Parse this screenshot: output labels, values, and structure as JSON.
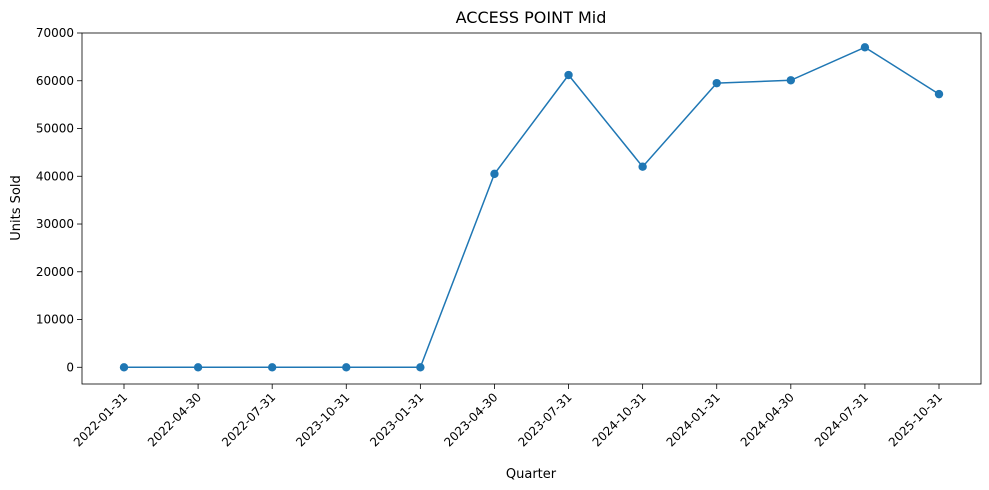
{
  "chart_data": {
    "type": "line",
    "title": "ACCESS POINT Mid",
    "xlabel": "Quarter",
    "ylabel": "Units Sold",
    "categories": [
      "2022-01-31",
      "2022-04-30",
      "2022-07-31",
      "2023-10-31",
      "2023-01-31",
      "2023-04-30",
      "2023-07-31",
      "2024-10-31",
      "2024-01-31",
      "2024-04-30",
      "2024-07-31",
      "2025-10-31"
    ],
    "series": [
      {
        "values": [
          0,
          0,
          0,
          0,
          0,
          40500,
          61200,
          42000,
          59500,
          60100,
          67000,
          57200
        ]
      }
    ],
    "ylim": [
      -3500,
      70000
    ],
    "yticks": [
      0,
      10000,
      20000,
      30000,
      40000,
      50000,
      60000,
      70000
    ],
    "grid": false,
    "legend": "none",
    "color": "#1f77b4"
  }
}
